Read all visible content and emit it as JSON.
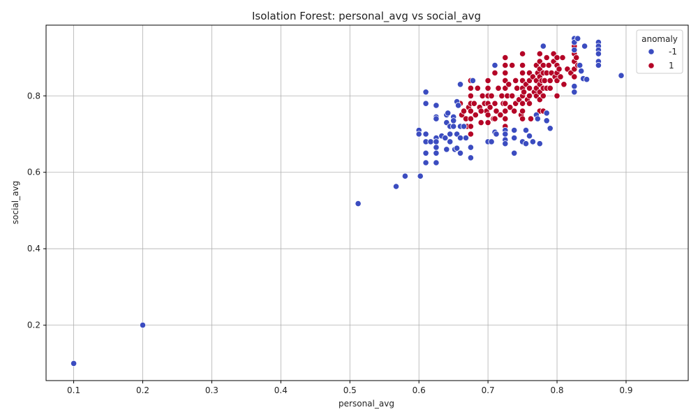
{
  "chart_data": {
    "type": "scatter",
    "title": "Isolation Forest: personal_avg vs social_avg",
    "xlabel": "personal_avg",
    "ylabel": "social_avg",
    "xlim": [
      0.06,
      0.99
    ],
    "ylim": [
      0.055,
      0.985
    ],
    "xticks": [
      0.1,
      0.2,
      0.3,
      0.4,
      0.5,
      0.6,
      0.7,
      0.8,
      0.9
    ],
    "xtick_labels": [
      "0.1",
      "0.2",
      "0.3",
      "0.4",
      "0.5",
      "0.6",
      "0.7",
      "0.8",
      "0.9"
    ],
    "yticks": [
      0.2,
      0.4,
      0.6,
      0.8
    ],
    "ytick_labels": [
      "0.2",
      "0.4",
      "0.6",
      "0.8"
    ],
    "grid": true,
    "legend": {
      "title": "anomaly",
      "position": "top-right"
    },
    "series": [
      {
        "name": "1",
        "color": "#b40426",
        "points": [
          [
            0.66,
            0.78
          ],
          [
            0.662,
            0.75
          ],
          [
            0.665,
            0.76
          ],
          [
            0.668,
            0.74
          ],
          [
            0.67,
            0.72
          ],
          [
            0.672,
            0.77
          ],
          [
            0.675,
            0.84
          ],
          [
            0.675,
            0.82
          ],
          [
            0.675,
            0.8
          ],
          [
            0.675,
            0.78
          ],
          [
            0.675,
            0.76
          ],
          [
            0.675,
            0.74
          ],
          [
            0.675,
            0.72
          ],
          [
            0.675,
            0.7
          ],
          [
            0.68,
            0.78
          ],
          [
            0.682,
            0.75
          ],
          [
            0.685,
            0.82
          ],
          [
            0.688,
            0.77
          ],
          [
            0.69,
            0.73
          ],
          [
            0.692,
            0.8
          ],
          [
            0.695,
            0.78
          ],
          [
            0.698,
            0.76
          ],
          [
            0.7,
            0.84
          ],
          [
            0.7,
            0.82
          ],
          [
            0.7,
            0.8
          ],
          [
            0.7,
            0.78
          ],
          [
            0.7,
            0.75
          ],
          [
            0.7,
            0.73
          ],
          [
            0.703,
            0.77
          ],
          [
            0.705,
            0.8
          ],
          [
            0.708,
            0.74
          ],
          [
            0.71,
            0.86
          ],
          [
            0.71,
            0.78
          ],
          [
            0.712,
            0.76
          ],
          [
            0.715,
            0.82
          ],
          [
            0.718,
            0.75
          ],
          [
            0.72,
            0.8
          ],
          [
            0.722,
            0.78
          ],
          [
            0.725,
            0.9
          ],
          [
            0.725,
            0.88
          ],
          [
            0.725,
            0.86
          ],
          [
            0.725,
            0.84
          ],
          [
            0.725,
            0.82
          ],
          [
            0.725,
            0.78
          ],
          [
            0.725,
            0.76
          ],
          [
            0.725,
            0.74
          ],
          [
            0.725,
            0.72
          ],
          [
            0.725,
            0.7
          ],
          [
            0.728,
            0.8
          ],
          [
            0.73,
            0.83
          ],
          [
            0.732,
            0.77
          ],
          [
            0.735,
            0.88
          ],
          [
            0.735,
            0.8
          ],
          [
            0.738,
            0.76
          ],
          [
            0.74,
            0.84
          ],
          [
            0.74,
            0.78
          ],
          [
            0.742,
            0.82
          ],
          [
            0.745,
            0.79
          ],
          [
            0.748,
            0.75
          ],
          [
            0.75,
            0.91
          ],
          [
            0.75,
            0.88
          ],
          [
            0.75,
            0.86
          ],
          [
            0.75,
            0.84
          ],
          [
            0.75,
            0.82
          ],
          [
            0.75,
            0.8
          ],
          [
            0.75,
            0.78
          ],
          [
            0.75,
            0.76
          ],
          [
            0.75,
            0.74
          ],
          [
            0.752,
            0.81
          ],
          [
            0.755,
            0.83
          ],
          [
            0.757,
            0.79
          ],
          [
            0.76,
            0.86
          ],
          [
            0.76,
            0.84
          ],
          [
            0.76,
            0.82
          ],
          [
            0.76,
            0.8
          ],
          [
            0.76,
            0.78
          ],
          [
            0.762,
            0.74
          ],
          [
            0.765,
            0.85
          ],
          [
            0.767,
            0.81
          ],
          [
            0.77,
            0.88
          ],
          [
            0.77,
            0.84
          ],
          [
            0.77,
            0.82
          ],
          [
            0.77,
            0.8
          ],
          [
            0.772,
            0.86
          ],
          [
            0.775,
            0.91
          ],
          [
            0.775,
            0.89
          ],
          [
            0.775,
            0.87
          ],
          [
            0.775,
            0.85
          ],
          [
            0.775,
            0.83
          ],
          [
            0.775,
            0.81
          ],
          [
            0.775,
            0.79
          ],
          [
            0.775,
            0.76
          ],
          [
            0.778,
            0.84
          ],
          [
            0.78,
            0.88
          ],
          [
            0.78,
            0.86
          ],
          [
            0.78,
            0.82
          ],
          [
            0.78,
            0.8
          ],
          [
            0.782,
            0.84
          ],
          [
            0.785,
            0.9
          ],
          [
            0.785,
            0.86
          ],
          [
            0.785,
            0.82
          ],
          [
            0.788,
            0.88
          ],
          [
            0.79,
            0.84
          ],
          [
            0.79,
            0.82
          ],
          [
            0.792,
            0.86
          ],
          [
            0.795,
            0.91
          ],
          [
            0.795,
            0.89
          ],
          [
            0.797,
            0.85
          ],
          [
            0.8,
            0.9
          ],
          [
            0.8,
            0.88
          ],
          [
            0.8,
            0.86
          ],
          [
            0.8,
            0.84
          ],
          [
            0.8,
            0.8
          ],
          [
            0.803,
            0.87
          ],
          [
            0.805,
            0.85
          ],
          [
            0.808,
            0.9
          ],
          [
            0.81,
            0.83
          ],
          [
            0.815,
            0.87
          ],
          [
            0.82,
            0.86
          ],
          [
            0.825,
            0.93
          ],
          [
            0.825,
            0.91
          ],
          [
            0.825,
            0.89
          ],
          [
            0.825,
            0.87
          ],
          [
            0.825,
            0.85
          ],
          [
            0.828,
            0.9
          ],
          [
            0.83,
            0.88
          ],
          [
            0.78,
            0.76
          ],
          [
            0.69,
            0.76
          ],
          [
            0.71,
            0.74
          ]
        ]
      },
      {
        "name": "-1",
        "color": "#3b4cc0",
        "points": [
          [
            0.1,
            0.1
          ],
          [
            0.2,
            0.2
          ],
          [
            0.512,
            0.518
          ],
          [
            0.567,
            0.563
          ],
          [
            0.58,
            0.59
          ],
          [
            0.6,
            0.71
          ],
          [
            0.6,
            0.7
          ],
          [
            0.602,
            0.59
          ],
          [
            0.61,
            0.81
          ],
          [
            0.61,
            0.78
          ],
          [
            0.61,
            0.7
          ],
          [
            0.61,
            0.68
          ],
          [
            0.61,
            0.65
          ],
          [
            0.61,
            0.625
          ],
          [
            0.617,
            0.68
          ],
          [
            0.625,
            0.775
          ],
          [
            0.625,
            0.745
          ],
          [
            0.625,
            0.74
          ],
          [
            0.625,
            0.69
          ],
          [
            0.625,
            0.68
          ],
          [
            0.625,
            0.665
          ],
          [
            0.625,
            0.65
          ],
          [
            0.625,
            0.625
          ],
          [
            0.633,
            0.695
          ],
          [
            0.638,
            0.69
          ],
          [
            0.64,
            0.75
          ],
          [
            0.64,
            0.73
          ],
          [
            0.64,
            0.66
          ],
          [
            0.642,
            0.755
          ],
          [
            0.645,
            0.72
          ],
          [
            0.645,
            0.7
          ],
          [
            0.645,
            0.68
          ],
          [
            0.65,
            0.745
          ],
          [
            0.65,
            0.735
          ],
          [
            0.65,
            0.72
          ],
          [
            0.652,
            0.66
          ],
          [
            0.655,
            0.785
          ],
          [
            0.655,
            0.7
          ],
          [
            0.655,
            0.663
          ],
          [
            0.657,
            0.775
          ],
          [
            0.66,
            0.83
          ],
          [
            0.66,
            0.72
          ],
          [
            0.66,
            0.69
          ],
          [
            0.66,
            0.65
          ],
          [
            0.665,
            0.72
          ],
          [
            0.668,
            0.69
          ],
          [
            0.675,
            0.665
          ],
          [
            0.675,
            0.638
          ],
          [
            0.678,
            0.84
          ],
          [
            0.7,
            0.68
          ],
          [
            0.705,
            0.68
          ],
          [
            0.71,
            0.88
          ],
          [
            0.71,
            0.705
          ],
          [
            0.712,
            0.7
          ],
          [
            0.725,
            0.71
          ],
          [
            0.725,
            0.7
          ],
          [
            0.725,
            0.685
          ],
          [
            0.725,
            0.675
          ],
          [
            0.738,
            0.71
          ],
          [
            0.738,
            0.69
          ],
          [
            0.738,
            0.65
          ],
          [
            0.75,
            0.68
          ],
          [
            0.755,
            0.675
          ],
          [
            0.755,
            0.71
          ],
          [
            0.76,
            0.695
          ],
          [
            0.765,
            0.68
          ],
          [
            0.77,
            0.75
          ],
          [
            0.772,
            0.74
          ],
          [
            0.775,
            0.675
          ],
          [
            0.78,
            0.93
          ],
          [
            0.785,
            0.735
          ],
          [
            0.785,
            0.755
          ],
          [
            0.79,
            0.715
          ],
          [
            0.825,
            0.95
          ],
          [
            0.825,
            0.94
          ],
          [
            0.825,
            0.92
          ],
          [
            0.825,
            0.825
          ],
          [
            0.825,
            0.81
          ],
          [
            0.83,
            0.95
          ],
          [
            0.833,
            0.88
          ],
          [
            0.835,
            0.865
          ],
          [
            0.838,
            0.845
          ],
          [
            0.84,
            0.93
          ],
          [
            0.843,
            0.843
          ],
          [
            0.86,
            0.94
          ],
          [
            0.86,
            0.93
          ],
          [
            0.86,
            0.92
          ],
          [
            0.86,
            0.91
          ],
          [
            0.86,
            0.89
          ],
          [
            0.86,
            0.88
          ],
          [
            0.893,
            0.853
          ]
        ]
      }
    ]
  }
}
